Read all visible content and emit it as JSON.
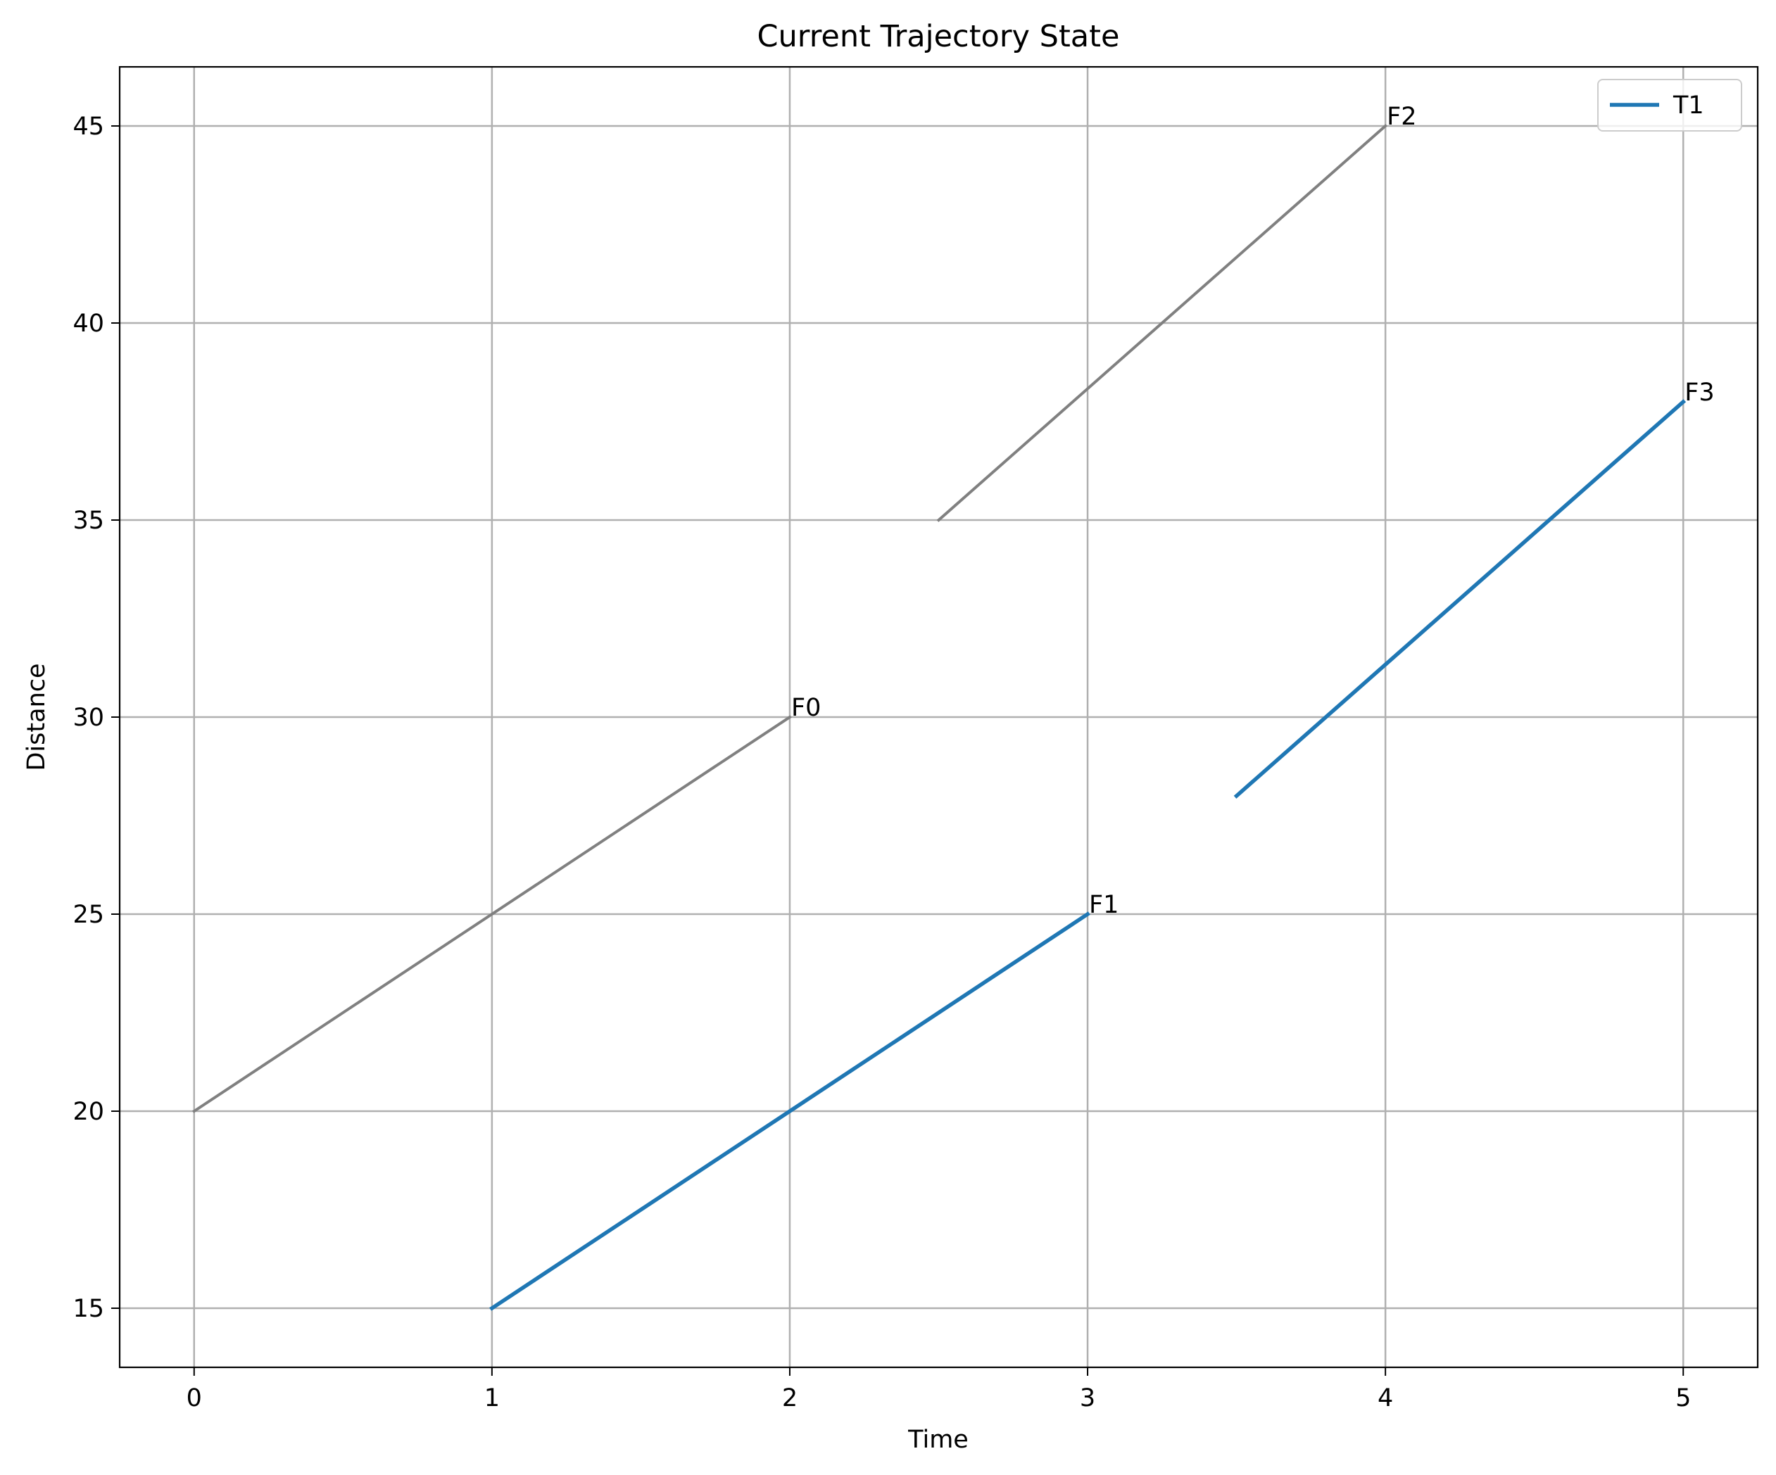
{
  "chart_data": {
    "type": "line",
    "title": "Current Trajectory State",
    "xlabel": "Time",
    "ylabel": "Distance",
    "xlim": [
      -0.25,
      5.25
    ],
    "ylim": [
      13.5,
      46.5
    ],
    "xticks": [
      0,
      1,
      2,
      3,
      4,
      5
    ],
    "yticks": [
      15,
      20,
      25,
      30,
      35,
      40,
      45
    ],
    "grid": true,
    "legend": {
      "placement": "top-right",
      "entries": [
        {
          "label": "T1",
          "color": "#1f77b4"
        }
      ]
    },
    "series": [
      {
        "x": [
          0,
          2
        ],
        "y": [
          20,
          30
        ],
        "color": "#808080",
        "end_label": "F0"
      },
      {
        "x": [
          1,
          3
        ],
        "y": [
          15,
          25
        ],
        "color": "#1f77b4",
        "end_label": "F1"
      },
      {
        "x": [
          2.5,
          4
        ],
        "y": [
          35,
          45
        ],
        "color": "#808080",
        "end_label": "F2"
      },
      {
        "x": [
          3.5,
          5
        ],
        "y": [
          28,
          38
        ],
        "color": "#1f77b4",
        "end_label": "F3"
      }
    ]
  }
}
